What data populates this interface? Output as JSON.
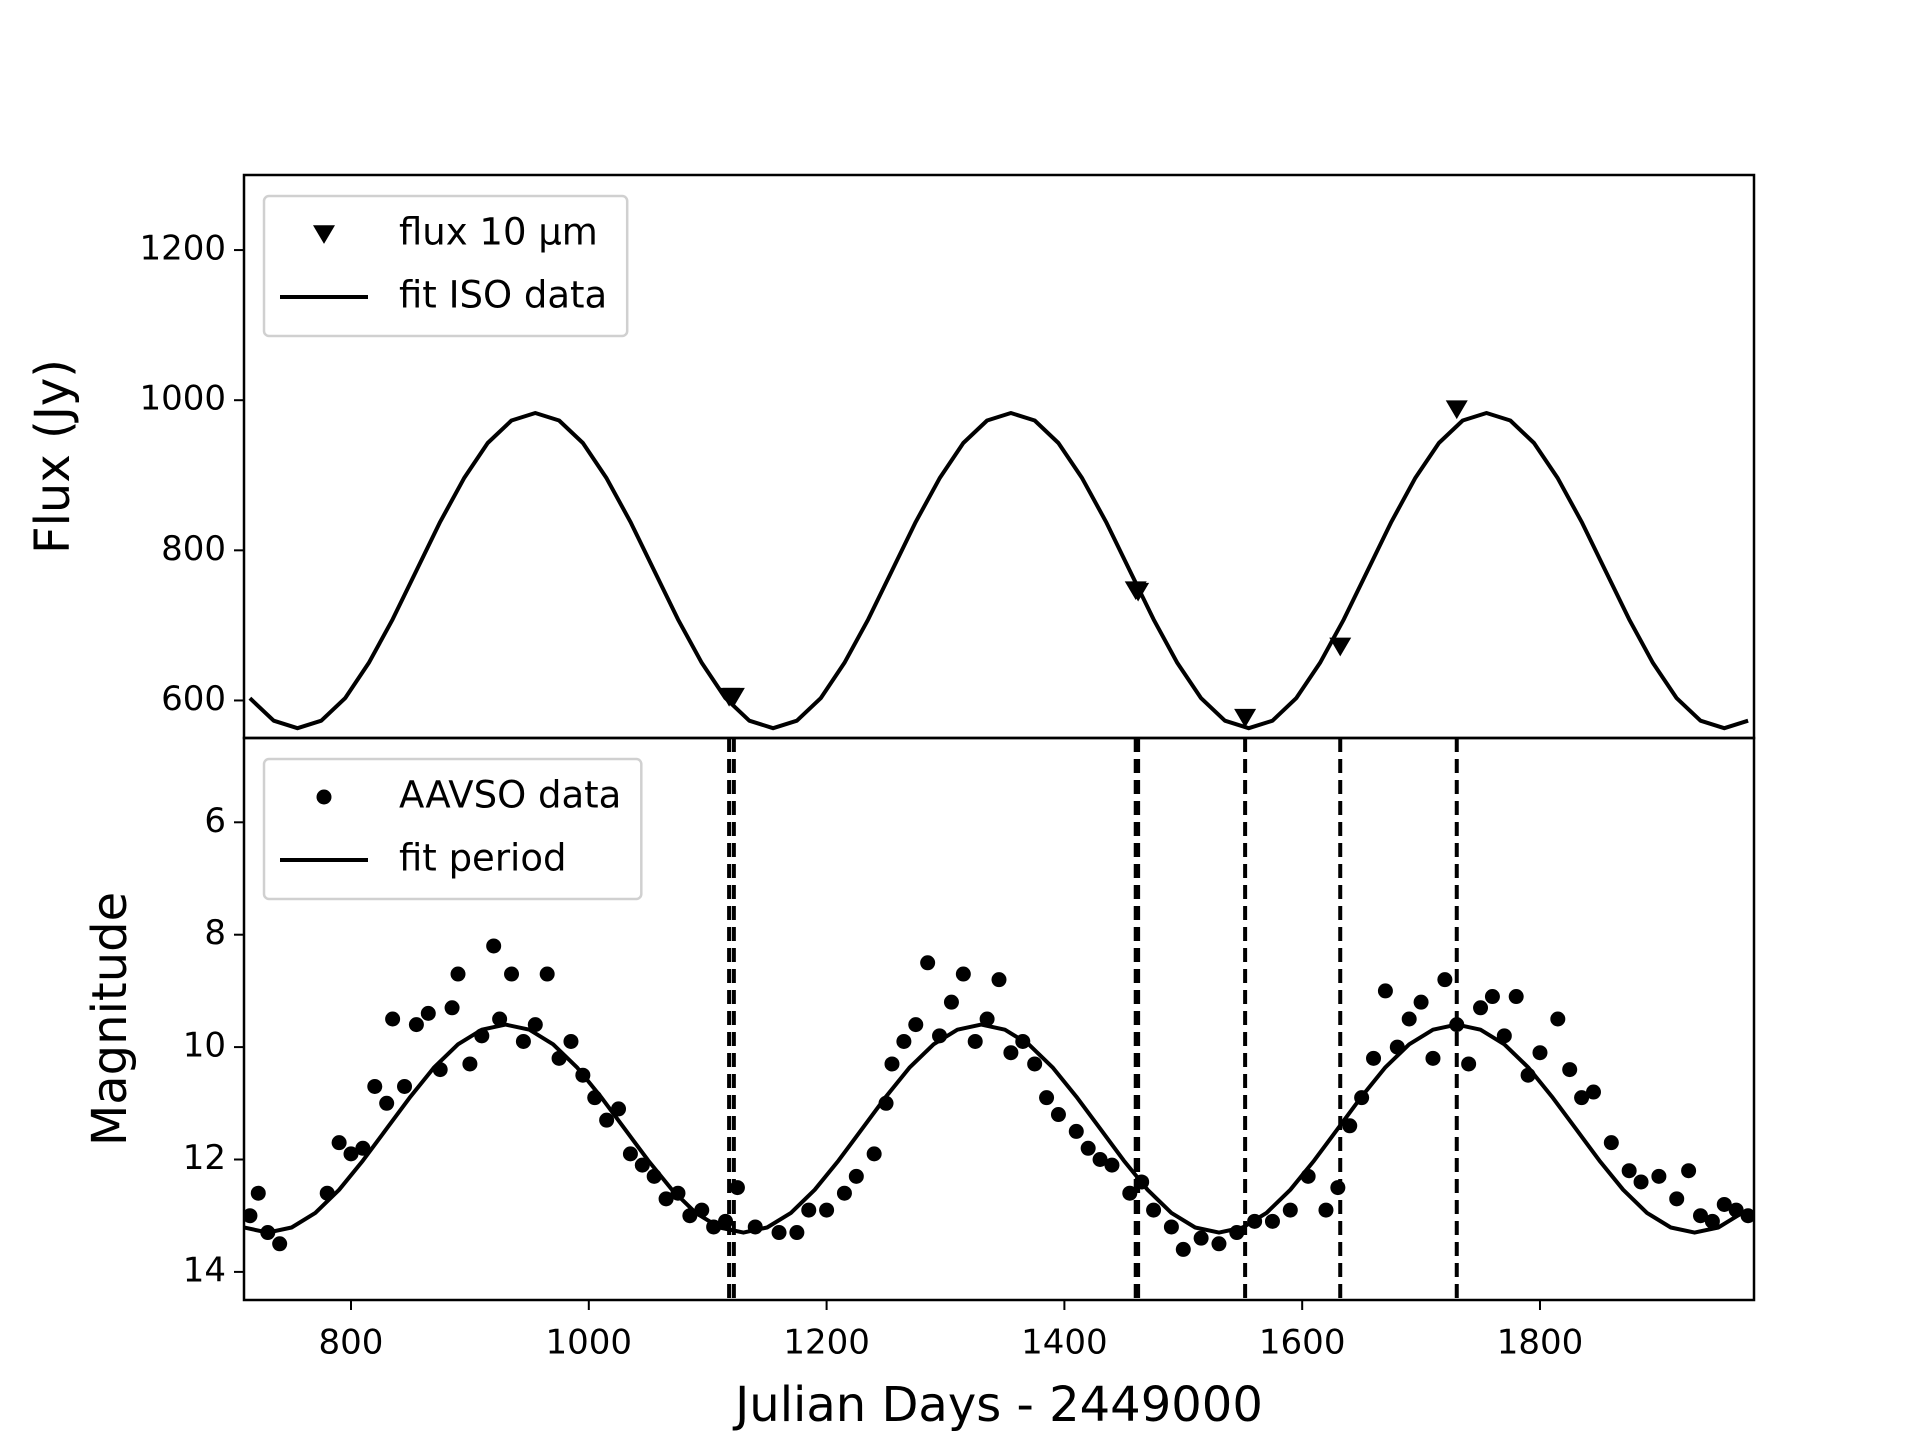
{
  "chart_data": [
    {
      "type": "line",
      "ylabel": "Flux (Jy)",
      "xlim": [
        710,
        1980
      ],
      "ylim": [
        550,
        1300
      ],
      "yticks": [
        600,
        800,
        1000,
        1200
      ],
      "legend": "upper left",
      "series": [
        {
          "name": "flux 10 μm",
          "mode": "scatter",
          "marker": "triangle-down",
          "color": "#000000",
          "x": [
            1118,
            1122,
            1460,
            1462,
            1552,
            1632,
            1730
          ],
          "values": [
            605,
            605,
            747,
            745,
            577,
            672,
            988
          ]
        },
        {
          "name": "fit ISO data",
          "mode": "line",
          "color": "#000000",
          "x": [
            715,
            735,
            755,
            775,
            795,
            815,
            835,
            855,
            875,
            895,
            915,
            935,
            955,
            975,
            995,
            1015,
            1035,
            1055,
            1075,
            1095,
            1115,
            1135,
            1155,
            1175,
            1195,
            1215,
            1235,
            1255,
            1275,
            1295,
            1315,
            1335,
            1355,
            1375,
            1395,
            1415,
            1435,
            1455,
            1475,
            1495,
            1515,
            1535,
            1555,
            1575,
            1595,
            1615,
            1635,
            1655,
            1675,
            1695,
            1715,
            1735,
            1755,
            1775,
            1795,
            1815,
            1835,
            1855,
            1875,
            1895,
            1915,
            1935,
            1955,
            1975
          ],
          "values": [
            603,
            573,
            563,
            573,
            603,
            650,
            708,
            773,
            838,
            896,
            943,
            973,
            983,
            973,
            943,
            896,
            838,
            773,
            708,
            650,
            603,
            573,
            563,
            573,
            603,
            650,
            708,
            773,
            838,
            896,
            943,
            973,
            983,
            973,
            943,
            896,
            838,
            773,
            708,
            650,
            603,
            573,
            563,
            573,
            603,
            650,
            708,
            773,
            838,
            896,
            943,
            973,
            983,
            973,
            943,
            896,
            838,
            773,
            708,
            650,
            603,
            573,
            563,
            573
          ]
        }
      ]
    },
    {
      "type": "line",
      "ylabel": "Magnitude",
      "xlabel": "Julian Days - 2449000",
      "xlim": [
        710,
        1980
      ],
      "xticks": [
        800,
        1000,
        1200,
        1400,
        1600,
        1800
      ],
      "ylim": [
        4.5,
        14.5
      ],
      "y_inverted": true,
      "yticks": [
        6,
        8,
        10,
        12,
        14
      ],
      "legend": "upper left",
      "reference_lines": "dashed",
      "series": [
        {
          "name": "AAVSO data",
          "mode": "scatter",
          "marker": "circle",
          "color": "#000000",
          "x": [
            715,
            722,
            730,
            740,
            780,
            790,
            800,
            810,
            820,
            830,
            835,
            845,
            855,
            865,
            875,
            885,
            890,
            900,
            910,
            920,
            925,
            935,
            945,
            955,
            965,
            975,
            985,
            995,
            1005,
            1015,
            1025,
            1035,
            1045,
            1055,
            1065,
            1075,
            1085,
            1095,
            1105,
            1115,
            1125,
            1140,
            1160,
            1175,
            1185,
            1200,
            1215,
            1225,
            1240,
            1250,
            1255,
            1265,
            1275,
            1285,
            1295,
            1305,
            1315,
            1325,
            1335,
            1345,
            1355,
            1365,
            1375,
            1385,
            1395,
            1410,
            1420,
            1430,
            1440,
            1455,
            1465,
            1475,
            1490,
            1500,
            1515,
            1530,
            1545,
            1560,
            1575,
            1590,
            1605,
            1620,
            1630,
            1640,
            1650,
            1660,
            1670,
            1680,
            1690,
            1700,
            1710,
            1720,
            1730,
            1740,
            1750,
            1760,
            1770,
            1780,
            1790,
            1800,
            1815,
            1825,
            1835,
            1845,
            1860,
            1875,
            1885,
            1900,
            1915,
            1925,
            1935,
            1945,
            1955,
            1965,
            1975
          ],
          "values": [
            13.0,
            12.6,
            13.3,
            13.5,
            12.6,
            11.7,
            11.9,
            11.8,
            10.7,
            11.0,
            9.5,
            10.7,
            9.6,
            9.4,
            10.4,
            9.3,
            8.7,
            10.3,
            9.8,
            8.2,
            9.5,
            8.7,
            9.9,
            9.6,
            8.7,
            10.2,
            9.9,
            10.5,
            10.9,
            11.3,
            11.1,
            11.9,
            12.1,
            12.3,
            12.7,
            12.6,
            13.0,
            12.9,
            13.2,
            13.1,
            12.5,
            13.2,
            13.3,
            13.3,
            12.9,
            12.9,
            12.6,
            12.3,
            11.9,
            11.0,
            10.3,
            9.9,
            9.6,
            8.5,
            9.8,
            9.2,
            8.7,
            9.9,
            9.5,
            8.8,
            10.1,
            9.9,
            10.3,
            10.9,
            11.2,
            11.5,
            11.8,
            12.0,
            12.1,
            12.6,
            12.4,
            12.9,
            13.2,
            13.6,
            13.4,
            13.5,
            13.3,
            13.1,
            13.1,
            12.9,
            12.3,
            12.9,
            12.5,
            11.4,
            10.9,
            10.2,
            9.0,
            10.0,
            9.5,
            9.2,
            10.2,
            8.8,
            9.6,
            10.3,
            9.3,
            9.1,
            9.8,
            9.1,
            10.5,
            10.1,
            9.5,
            10.4,
            10.9,
            10.8,
            11.7,
            12.2,
            12.4,
            12.3,
            12.7,
            12.2,
            13.0,
            13.1,
            12.8,
            12.9,
            13.0
          ]
        },
        {
          "name": "fit period",
          "mode": "line",
          "color": "#000000",
          "x": [
            710,
            730,
            750,
            770,
            790,
            810,
            830,
            850,
            870,
            890,
            910,
            930,
            950,
            970,
            990,
            1010,
            1030,
            1050,
            1070,
            1090,
            1110,
            1130,
            1150,
            1170,
            1190,
            1210,
            1230,
            1250,
            1270,
            1290,
            1310,
            1330,
            1350,
            1370,
            1390,
            1410,
            1430,
            1450,
            1470,
            1490,
            1510,
            1530,
            1550,
            1570,
            1590,
            1610,
            1630,
            1650,
            1670,
            1690,
            1710,
            1730,
            1750,
            1770,
            1790,
            1810,
            1830,
            1850,
            1870,
            1890,
            1910,
            1930,
            1950,
            1970
          ],
          "values": [
            13.21,
            13.3,
            13.21,
            12.95,
            12.54,
            12.02,
            11.45,
            10.88,
            10.36,
            9.95,
            9.69,
            9.6,
            9.69,
            9.95,
            10.36,
            10.88,
            11.45,
            12.02,
            12.54,
            12.95,
            13.21,
            13.3,
            13.21,
            12.95,
            12.54,
            12.02,
            11.45,
            10.88,
            10.36,
            9.95,
            9.69,
            9.6,
            9.69,
            9.95,
            10.36,
            10.88,
            11.45,
            12.02,
            12.54,
            12.95,
            13.21,
            13.3,
            13.21,
            12.95,
            12.54,
            12.02,
            11.45,
            10.88,
            10.36,
            9.95,
            9.69,
            9.6,
            9.69,
            9.95,
            10.36,
            10.88,
            11.45,
            12.02,
            12.54,
            12.95,
            13.21,
            13.3,
            13.21,
            12.95
          ]
        }
      ]
    }
  ]
}
